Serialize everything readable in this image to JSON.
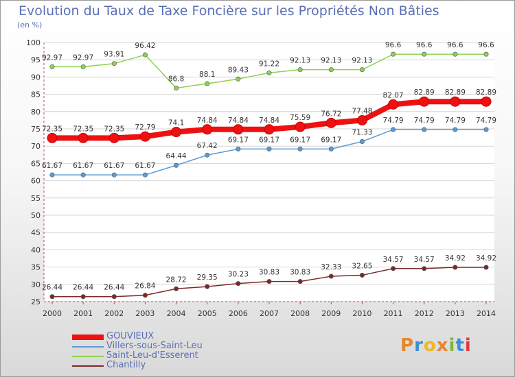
{
  "title": "Evolution du Taux de Taxe Foncière sur les Propriétés Non Bâties",
  "unit_label": "(en %)",
  "logo": {
    "text": "Proxiti",
    "colors": [
      "#e8862a",
      "#3a8fd6",
      "#f2b61e",
      "#e8862a",
      "#7bb83a",
      "#3a8fd6",
      "#e03a3a"
    ]
  },
  "chart_data": {
    "type": "line",
    "x": [
      2000,
      2001,
      2002,
      2003,
      2004,
      2005,
      2006,
      2007,
      2008,
      2009,
      2010,
      2011,
      2012,
      2013,
      2014
    ],
    "x_tick_labels": [
      "2000",
      "2001",
      "2002",
      "2003",
      "2004",
      "2005",
      "2006",
      "2007",
      "2008",
      "2009",
      "2010",
      "2011",
      "2012",
      "2013",
      "2014"
    ],
    "ylim": [
      25,
      100
    ],
    "y_ticks": [
      25,
      30,
      35,
      40,
      45,
      50,
      55,
      60,
      65,
      70,
      75,
      80,
      85,
      90,
      95,
      100
    ],
    "grid": "horizontal",
    "legend_position": "bottom-left",
    "series": [
      {
        "name": "GOUVIEUX",
        "color": "#ee1111",
        "thick": true,
        "values": [
          72.35,
          72.35,
          72.35,
          72.79,
          74.1,
          74.84,
          74.84,
          74.84,
          75.59,
          76.72,
          77.48,
          82.07,
          82.89,
          82.89,
          82.89
        ],
        "labels": [
          "72.35",
          "72.35",
          "72.35",
          "72.79",
          "74.1",
          "74.84",
          "74.84",
          "74.84",
          "75.59",
          "76.72",
          "77.48",
          "82.07",
          "82.89",
          "82.89",
          "82.89"
        ]
      },
      {
        "name": "Villers-sous-Saint-Leu",
        "color": "#5b9bd5",
        "thick": false,
        "values": [
          61.67,
          61.67,
          61.67,
          61.67,
          64.44,
          67.42,
          69.17,
          69.17,
          69.17,
          69.17,
          71.33,
          74.79,
          74.79,
          74.79,
          74.79
        ],
        "labels": [
          "61.67",
          "61.67",
          "61.67",
          "61.67",
          "64.44",
          "67.42",
          "69.17",
          "69.17",
          "69.17",
          "69.17",
          "71.33",
          "74.79",
          "74.79",
          "74.79",
          "74.79"
        ]
      },
      {
        "name": "Saint-Leu-d'Esserent",
        "color": "#8fd14f",
        "thick": false,
        "values": [
          92.97,
          92.97,
          93.91,
          96.42,
          86.8,
          88.1,
          89.43,
          91.22,
          92.13,
          92.13,
          92.13,
          96.6,
          96.6,
          96.6,
          96.6
        ],
        "labels": [
          "92.97",
          "92.97",
          "93.91",
          "96.42",
          "86.8",
          "88.1",
          "89.43",
          "91.22",
          "92.13",
          "92.13",
          "92.13",
          "96.6",
          "96.6",
          "96.6",
          "96.6"
        ]
      },
      {
        "name": "Chantilly",
        "color": "#7a2a2a",
        "thick": false,
        "values": [
          26.44,
          26.44,
          26.44,
          26.84,
          28.72,
          29.35,
          30.23,
          30.83,
          30.83,
          32.33,
          32.65,
          34.57,
          34.57,
          34.92,
          34.92
        ],
        "labels": [
          "26.44",
          "26.44",
          "26.44",
          "26.84",
          "28.72",
          "29.35",
          "30.23",
          "30.83",
          "30.83",
          "32.33",
          "32.65",
          "34.57",
          "34.57",
          "34.92",
          "34.92"
        ]
      }
    ]
  }
}
